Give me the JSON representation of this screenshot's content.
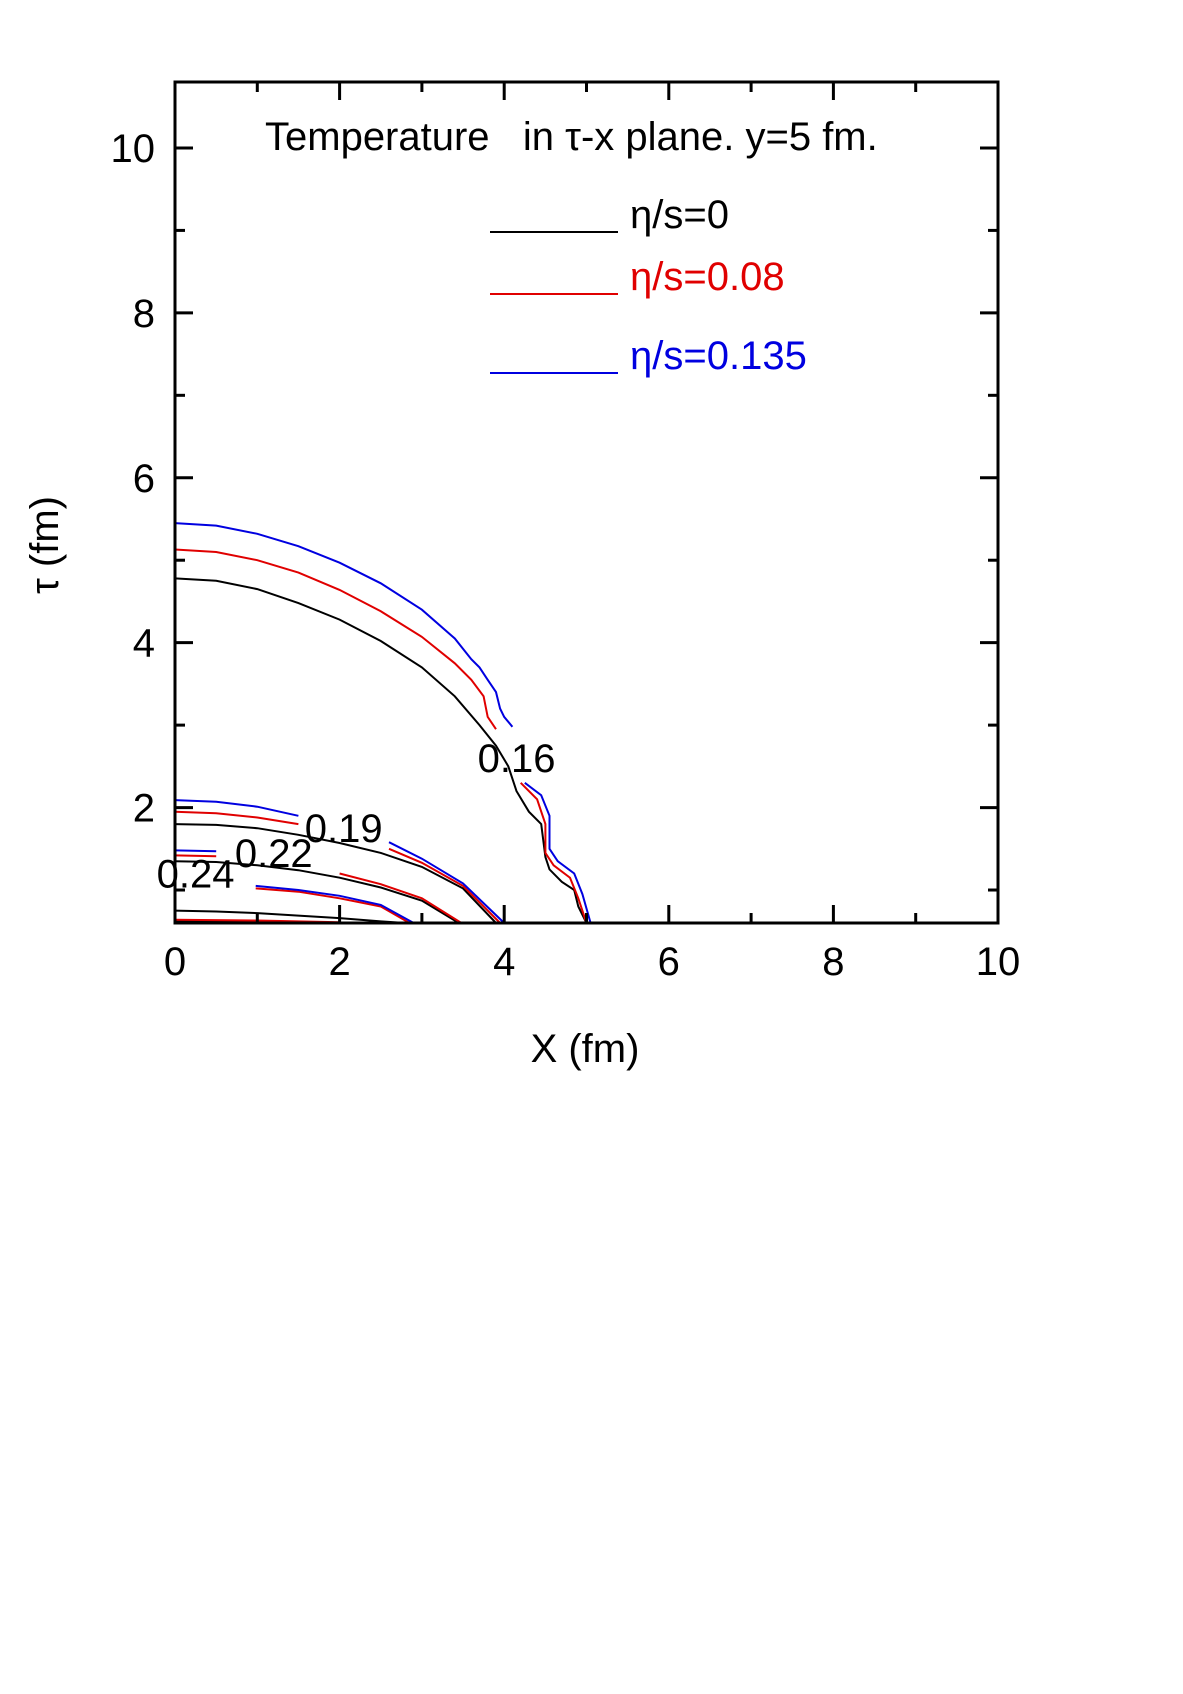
{
  "chart_data": {
    "type": "line",
    "title": "Temperature   in τ-x plane. y=5 fm.",
    "xlabel": "X (fm)",
    "ylabel": "τ (fm)",
    "xlim": [
      0,
      10
    ],
    "ylim": [
      0.6,
      10.8
    ],
    "xticks": [
      0,
      2,
      4,
      6,
      8,
      10
    ],
    "xtick_labels": [
      "0",
      "2",
      "4",
      "6",
      "8",
      "10"
    ],
    "yticks": [
      2,
      4,
      6,
      8,
      10
    ],
    "ytick_labels": [
      "2",
      "4",
      "6",
      "8",
      "10"
    ],
    "grid": false,
    "legend_position": "top-center",
    "legend": [
      {
        "label": "η/s=0",
        "color": "#000000"
      },
      {
        "label": "η/s=0.08",
        "color": "#e00000"
      },
      {
        "label": "η/s=0.135",
        "color": "#0000e0"
      }
    ],
    "contour_labels": [
      {
        "text": "0.16",
        "x": 4.15,
        "y": 2.6
      },
      {
        "text": "0.19",
        "x": 2.05,
        "y": 1.75
      },
      {
        "text": "0.22",
        "x": 1.2,
        "y": 1.45
      },
      {
        "text": "0.24",
        "x": 0.25,
        "y": 1.2
      }
    ],
    "series": [
      {
        "name": "η/s=0",
        "level": "0.16",
        "color": "#000000",
        "points": [
          [
            0,
            4.78
          ],
          [
            0.5,
            4.75
          ],
          [
            1.0,
            4.65
          ],
          [
            1.5,
            4.48
          ],
          [
            2.0,
            4.28
          ],
          [
            2.5,
            4.02
          ],
          [
            3.0,
            3.7
          ],
          [
            3.4,
            3.35
          ],
          [
            3.7,
            3.0
          ],
          [
            3.9,
            2.75
          ],
          [
            4.05,
            2.5
          ],
          [
            4.15,
            2.2
          ],
          [
            4.3,
            1.95
          ],
          [
            4.45,
            1.8
          ],
          [
            4.5,
            1.4
          ],
          [
            4.55,
            1.25
          ],
          [
            4.7,
            1.1
          ],
          [
            4.85,
            1.0
          ],
          [
            4.9,
            0.8
          ],
          [
            5.0,
            0.6
          ]
        ]
      },
      {
        "name": "η/s=0.08",
        "level": "0.16",
        "color": "#e00000",
        "points": [
          [
            0,
            5.13
          ],
          [
            0.5,
            5.1
          ],
          [
            1.0,
            5.0
          ],
          [
            1.5,
            4.85
          ],
          [
            2.0,
            4.64
          ],
          [
            2.5,
            4.38
          ],
          [
            3.0,
            4.07
          ],
          [
            3.4,
            3.75
          ],
          [
            3.6,
            3.55
          ],
          [
            3.75,
            3.35
          ],
          [
            3.8,
            3.1
          ],
          [
            3.9,
            2.95
          ]
        ]
      },
      {
        "name": "η/s=0.08",
        "level": "0.16b",
        "color": "#e00000",
        "points": [
          [
            4.2,
            2.3
          ],
          [
            4.4,
            2.1
          ],
          [
            4.5,
            1.8
          ],
          [
            4.5,
            1.45
          ],
          [
            4.6,
            1.3
          ],
          [
            4.8,
            1.15
          ],
          [
            4.9,
            0.9
          ],
          [
            5.0,
            0.6
          ]
        ]
      },
      {
        "name": "η/s=0.135",
        "level": "0.16",
        "color": "#0000e0",
        "points": [
          [
            0,
            5.45
          ],
          [
            0.5,
            5.42
          ],
          [
            1.0,
            5.32
          ],
          [
            1.5,
            5.17
          ],
          [
            2.0,
            4.97
          ],
          [
            2.5,
            4.72
          ],
          [
            3.0,
            4.4
          ],
          [
            3.4,
            4.05
          ],
          [
            3.6,
            3.8
          ],
          [
            3.7,
            3.7
          ],
          [
            3.8,
            3.55
          ],
          [
            3.9,
            3.4
          ],
          [
            3.95,
            3.2
          ],
          [
            4.0,
            3.1
          ],
          [
            4.1,
            2.98
          ]
        ]
      },
      {
        "name": "η/s=0.135",
        "level": "0.16b",
        "color": "#0000e0",
        "points": [
          [
            4.25,
            2.3
          ],
          [
            4.45,
            2.15
          ],
          [
            4.55,
            1.9
          ],
          [
            4.55,
            1.5
          ],
          [
            4.65,
            1.35
          ],
          [
            4.85,
            1.2
          ],
          [
            4.95,
            0.95
          ],
          [
            5.05,
            0.6
          ]
        ]
      },
      {
        "name": "η/s=0",
        "level": "0.19",
        "color": "#000000",
        "points": [
          [
            0,
            1.8
          ],
          [
            0.5,
            1.79
          ],
          [
            1.0,
            1.75
          ],
          [
            1.5,
            1.67
          ],
          [
            2.0,
            1.57
          ],
          [
            2.5,
            1.45
          ],
          [
            3.0,
            1.28
          ],
          [
            3.5,
            1.02
          ],
          [
            3.9,
            0.6
          ]
        ]
      },
      {
        "name": "η/s=0.08",
        "level": "0.19",
        "color": "#e00000",
        "points": [
          [
            0,
            1.95
          ],
          [
            0.5,
            1.93
          ],
          [
            1.0,
            1.88
          ],
          [
            1.5,
            1.8
          ]
        ]
      },
      {
        "name": "η/s=0.08",
        "level": "0.19b",
        "color": "#e00000",
        "points": [
          [
            2.6,
            1.5
          ],
          [
            3.0,
            1.33
          ],
          [
            3.5,
            1.05
          ],
          [
            3.95,
            0.6
          ]
        ]
      },
      {
        "name": "η/s=0.135",
        "level": "0.19",
        "color": "#0000e0",
        "points": [
          [
            0,
            2.09
          ],
          [
            0.5,
            2.07
          ],
          [
            1.0,
            2.01
          ],
          [
            1.5,
            1.9
          ]
        ]
      },
      {
        "name": "η/s=0.135",
        "level": "0.19b",
        "color": "#0000e0",
        "points": [
          [
            2.6,
            1.58
          ],
          [
            3.0,
            1.38
          ],
          [
            3.5,
            1.08
          ],
          [
            4.0,
            0.6
          ]
        ]
      },
      {
        "name": "η/s=0",
        "level": "0.22",
        "color": "#000000",
        "points": [
          [
            0,
            1.35
          ],
          [
            0.5,
            1.34
          ],
          [
            1.0,
            1.3
          ],
          [
            1.5,
            1.24
          ],
          [
            2.0,
            1.15
          ],
          [
            2.5,
            1.03
          ],
          [
            3.0,
            0.87
          ],
          [
            3.45,
            0.6
          ]
        ]
      },
      {
        "name": "η/s=0.08",
        "level": "0.22",
        "color": "#e00000",
        "points": [
          [
            0,
            1.42
          ],
          [
            0.5,
            1.41
          ]
        ]
      },
      {
        "name": "η/s=0.08",
        "level": "0.22b",
        "color": "#e00000",
        "points": [
          [
            2.0,
            1.2
          ],
          [
            2.5,
            1.07
          ],
          [
            3.0,
            0.9
          ],
          [
            3.48,
            0.6
          ]
        ]
      },
      {
        "name": "η/s=0.135",
        "level": "0.22",
        "color": "#0000e0",
        "points": [
          [
            0,
            1.48
          ],
          [
            0.5,
            1.47
          ]
        ]
      },
      {
        "name": "η/s=0",
        "level": "0.24",
        "color": "#000000",
        "points": [
          [
            0,
            0.75
          ],
          [
            0.5,
            0.74
          ],
          [
            1.0,
            0.72
          ],
          [
            1.5,
            0.69
          ],
          [
            2.0,
            0.66
          ],
          [
            2.5,
            0.62
          ],
          [
            2.8,
            0.6
          ]
        ]
      },
      {
        "name": "η/s=0.08",
        "level": "0.24",
        "color": "#e00000",
        "points": [
          [
            0.98,
            1.02
          ],
          [
            1.5,
            0.98
          ],
          [
            2.0,
            0.9
          ],
          [
            2.5,
            0.8
          ],
          [
            2.85,
            0.6
          ]
        ]
      },
      {
        "name": "η/s=0.135",
        "level": "0.24",
        "color": "#0000e0",
        "points": [
          [
            0.98,
            1.05
          ],
          [
            1.5,
            1.0
          ],
          [
            2.0,
            0.93
          ],
          [
            2.5,
            0.82
          ],
          [
            2.9,
            0.6
          ]
        ]
      },
      {
        "name": "η/s=0",
        "level": "0.24c",
        "color": "#000000",
        "points": [
          [
            0,
            0.62
          ],
          [
            1.0,
            0.62
          ],
          [
            1.5,
            0.61
          ],
          [
            2.0,
            0.6
          ]
        ]
      },
      {
        "name": "η/s=0.08",
        "level": "0.24c",
        "color": "#e00000",
        "points": [
          [
            0,
            0.64
          ],
          [
            1.0,
            0.63
          ],
          [
            2.0,
            0.61
          ]
        ]
      }
    ]
  }
}
